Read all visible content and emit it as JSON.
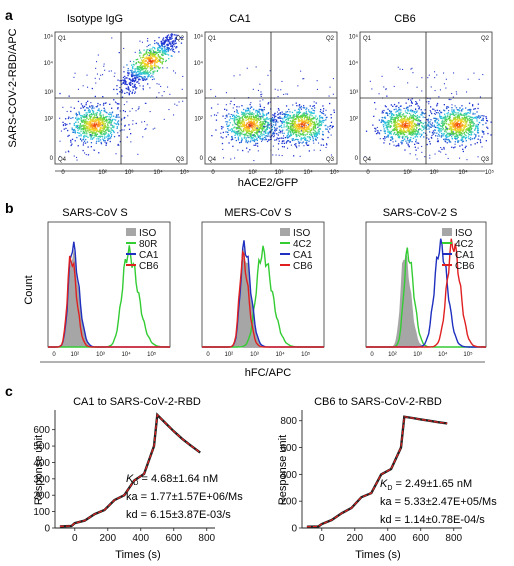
{
  "panels": {
    "a": {
      "label": "a",
      "ylabel": "SARS-COV-2-RBD/APC",
      "xlabel": "hACE2/GFP",
      "plots": [
        {
          "title": "Isotype IgG"
        },
        {
          "title": "CA1"
        },
        {
          "title": "CB6"
        }
      ],
      "quadrants": [
        "Q1",
        "Q2",
        "Q3",
        "Q4"
      ],
      "tick_labels": [
        "0",
        "10²",
        "10³",
        "10⁴",
        "10⁵"
      ]
    },
    "b": {
      "label": "b",
      "ylabel": "Count",
      "xlabel": "hFC/APC",
      "tick_labels": [
        "0",
        "10²",
        "10³",
        "10⁴",
        "10⁵"
      ],
      "plots": [
        {
          "title": "SARS-CoV S",
          "legend": [
            "ISO",
            "80R",
            "CA1",
            "CB6"
          ]
        },
        {
          "title": "MERS-CoV S",
          "legend": [
            "ISO",
            "4C2",
            "CA1",
            "CB6"
          ]
        },
        {
          "title": "SARS-CoV-2 S",
          "legend": [
            "ISO",
            "4C2",
            "CA1",
            "CB6"
          ]
        }
      ],
      "colors": {
        "ISO": "#a6a6a6",
        "positive": "#33cc33",
        "CA1": "#1f2fbf",
        "CB6": "#e02020"
      }
    },
    "c": {
      "label": "c",
      "ylabel": "Response unit",
      "xlabel": "Times (s)",
      "plots": [
        {
          "title": "CA1 to SARS-CoV-2-RBD",
          "kd_label": "K",
          "kd_sub": "D",
          "kd_value": " = 4.68±1.64 nM",
          "ka": "ka = 1.77±1.57E+06/Ms",
          "kd": "kd = 6.15±3.87E-03/s",
          "xticks": [
            "0",
            "200",
            "400",
            "600",
            "800"
          ],
          "yticks": [
            "0",
            "100",
            "200",
            "300",
            "400",
            "500",
            "600"
          ]
        },
        {
          "title": "CB6 to SARS-CoV-2-RBD",
          "kd_label": "K",
          "kd_sub": "D",
          "kd_value": " = 2.49±1.65 nM",
          "ka": "ka = 5.33±2.47E+05/Ms",
          "kd": "kd = 1.14±0.78E-04/s",
          "xticks": [
            "0",
            "200",
            "400",
            "600",
            "800"
          ],
          "yticks": [
            "0",
            "200",
            "400",
            "600",
            "800"
          ]
        }
      ]
    }
  },
  "chart_data": [
    {
      "type": "scatter",
      "title": "Isotype IgG",
      "xlabel": "hACE2/GFP",
      "ylabel": "SARS-COV-2-RBD/APC",
      "xscale": "log",
      "yscale": "log",
      "quadrants": [
        "Q1",
        "Q2",
        "Q3",
        "Q4"
      ],
      "clusters": [
        {
          "x": 100,
          "y": 100,
          "density": "high"
        },
        {
          "x": 10000,
          "y": 20000,
          "density": "high"
        }
      ]
    },
    {
      "type": "scatter",
      "title": "CA1",
      "xlabel": "hACE2/GFP",
      "ylabel": "SARS-COV-2-RBD/APC",
      "xscale": "log",
      "yscale": "log",
      "quadrants": [
        "Q1",
        "Q2",
        "Q3",
        "Q4"
      ],
      "clusters": [
        {
          "x": 150,
          "y": 100,
          "density": "high"
        },
        {
          "x": 12000,
          "y": 100,
          "density": "high"
        }
      ]
    },
    {
      "type": "scatter",
      "title": "CB6",
      "xlabel": "hACE2/GFP",
      "ylabel": "SARS-COV-2-RBD/APC",
      "xscale": "log",
      "yscale": "log",
      "quadrants": [
        "Q1",
        "Q2",
        "Q3",
        "Q4"
      ],
      "clusters": [
        {
          "x": 150,
          "y": 100,
          "density": "high"
        },
        {
          "x": 12000,
          "y": 100,
          "density": "high"
        }
      ]
    },
    {
      "type": "area",
      "title": "SARS-CoV S",
      "xlabel": "hFC/APC",
      "ylabel": "Count",
      "xscale": "log",
      "series": [
        {
          "name": "ISO",
          "peak_x": 80
        },
        {
          "name": "80R",
          "peak_x": 12000
        },
        {
          "name": "CA1",
          "peak_x": 80
        },
        {
          "name": "CB6",
          "peak_x": 70
        }
      ]
    },
    {
      "type": "area",
      "title": "MERS-CoV S",
      "xlabel": "hFC/APC",
      "ylabel": "Count",
      "xscale": "log",
      "series": [
        {
          "name": "ISO",
          "peak_x": 400
        },
        {
          "name": "4C2",
          "peak_x": 2000
        },
        {
          "name": "CA1",
          "peak_x": 400
        },
        {
          "name": "CB6",
          "peak_x": 350
        }
      ]
    },
    {
      "type": "area",
      "title": "SARS-CoV-2 S",
      "xlabel": "hFC/APC",
      "ylabel": "Count",
      "xscale": "log",
      "series": [
        {
          "name": "ISO",
          "peak_x": 300
        },
        {
          "name": "4C2",
          "peak_x": 400
        },
        {
          "name": "CA1",
          "peak_x": 8000
        },
        {
          "name": "CB6",
          "peak_x": 25000
        }
      ]
    },
    {
      "type": "line",
      "title": "CA1 to SARS-CoV-2-RBD",
      "xlabel": "Times (s)",
      "ylabel": "Response unit",
      "xlim": [
        -120,
        850
      ],
      "ylim": [
        0,
        720
      ],
      "x": [
        -90,
        -20,
        0,
        60,
        120,
        180,
        240,
        300,
        360,
        420,
        480,
        500,
        550,
        600,
        650,
        700,
        760
      ],
      "y": [
        10,
        12,
        30,
        45,
        85,
        110,
        170,
        200,
        290,
        330,
        500,
        690,
        640,
        590,
        545,
        505,
        460
      ]
    },
    {
      "type": "line",
      "title": "CB6 to SARS-CoV-2-RBD",
      "xlabel": "Times (s)",
      "ylabel": "Response unit",
      "xlim": [
        -120,
        850
      ],
      "ylim": [
        0,
        880
      ],
      "x": [
        -90,
        -20,
        0,
        60,
        120,
        180,
        240,
        300,
        360,
        420,
        480,
        500,
        550,
        600,
        650,
        700,
        760
      ],
      "y": [
        10,
        12,
        30,
        60,
        110,
        150,
        230,
        260,
        400,
        440,
        600,
        830,
        820,
        810,
        800,
        790,
        780
      ]
    }
  ]
}
